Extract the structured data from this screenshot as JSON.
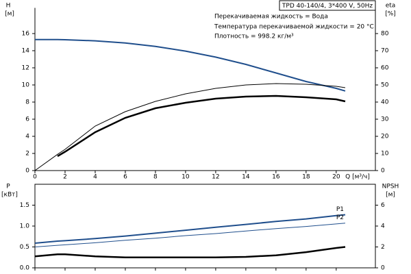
{
  "chart_data": [
    {
      "type": "line",
      "title": "TPD 40-140/4, 3*400 V, 50Hz",
      "annotations": [
        "Перекачиваемая жидкость = Вода",
        "Температура перекачиваемой жидкости = 20 °C",
        "Плотность = 998.2 кг/м³"
      ],
      "ylabel": "H",
      "ylabel_unit": "[м]",
      "y2label": "eta",
      "y2label_unit": "[%]",
      "xlabel": "Q [м³/ч]",
      "x": [
        0,
        1.5,
        2,
        4,
        6,
        8,
        10,
        12,
        14,
        16,
        18,
        20,
        20.6
      ],
      "series": [
        {
          "color": "#1f4e8c",
          "width": 2,
          "axis": "y",
          "values": [
            15.3,
            15.3,
            15.28,
            15.15,
            14.9,
            14.5,
            13.95,
            13.25,
            12.4,
            11.4,
            10.4,
            9.6,
            9.3
          ]
        },
        {
          "color": "#000000",
          "width": 1,
          "axis": "y2",
          "values": [
            0,
            9.5,
            12.4,
            26,
            34.4,
            40.4,
            44.8,
            48,
            50,
            50.8,
            50.4,
            49.2,
            48.4
          ]
        },
        {
          "color": "#000000",
          "width": 2.5,
          "axis": "y2",
          "values": [
            null,
            8.4,
            11,
            22.4,
            30.8,
            36.4,
            39.6,
            42,
            43.2,
            43.6,
            42.8,
            41.6,
            40.4
          ]
        }
      ],
      "xlim": [
        0,
        22.6
      ],
      "xticks": [
        0,
        2,
        4,
        6,
        8,
        10,
        12,
        14,
        16,
        18,
        20
      ],
      "xtick_labels": true,
      "ylim": [
        0,
        19
      ],
      "yticks": [
        0,
        2,
        4,
        6,
        8,
        10,
        12,
        14,
        16
      ],
      "y2lim": [
        0,
        95
      ],
      "y2ticks": [
        0,
        10,
        20,
        30,
        40,
        50,
        60,
        70,
        80
      ]
    },
    {
      "type": "line",
      "ylabel": "P",
      "ylabel_unit": "[кВт]",
      "y2label": "NPSH",
      "y2label_unit": "[м]",
      "x": [
        0,
        1.5,
        2,
        4,
        6,
        8,
        10,
        12,
        14,
        16,
        18,
        20,
        20.6
      ],
      "series": [
        {
          "name": "P1",
          "color": "#1f4e8c",
          "width": 2,
          "axis": "y",
          "values": [
            0.59,
            0.64,
            0.65,
            0.7,
            0.76,
            0.83,
            0.9,
            0.97,
            1.04,
            1.11,
            1.17,
            1.25,
            1.27
          ]
        },
        {
          "name": "P2",
          "color": "#1f4e8c",
          "width": 1,
          "axis": "y",
          "values": [
            0.5,
            0.54,
            0.55,
            0.6,
            0.66,
            0.71,
            0.77,
            0.82,
            0.88,
            0.94,
            0.99,
            1.05,
            1.07
          ]
        },
        {
          "color": "#000000",
          "width": 2.5,
          "axis": "y2",
          "values": [
            1.1,
            1.3,
            1.3,
            1.1,
            1.0,
            1.0,
            1.0,
            1.0,
            1.05,
            1.2,
            1.5,
            1.9,
            2.0
          ]
        }
      ],
      "xlim": [
        0,
        22.6
      ],
      "xticks": [
        0,
        2,
        4,
        6,
        8,
        10,
        12,
        14,
        16,
        18,
        20
      ],
      "xtick_labels": false,
      "ylim": [
        0,
        2
      ],
      "yticks": [
        {
          "value": 0,
          "label": "0.0"
        },
        0.5,
        {
          "value": 1,
          "label": "1.0"
        },
        1.5
      ],
      "y2lim": [
        0,
        8
      ],
      "y2ticks": [
        0,
        2,
        4,
        6
      ]
    }
  ]
}
